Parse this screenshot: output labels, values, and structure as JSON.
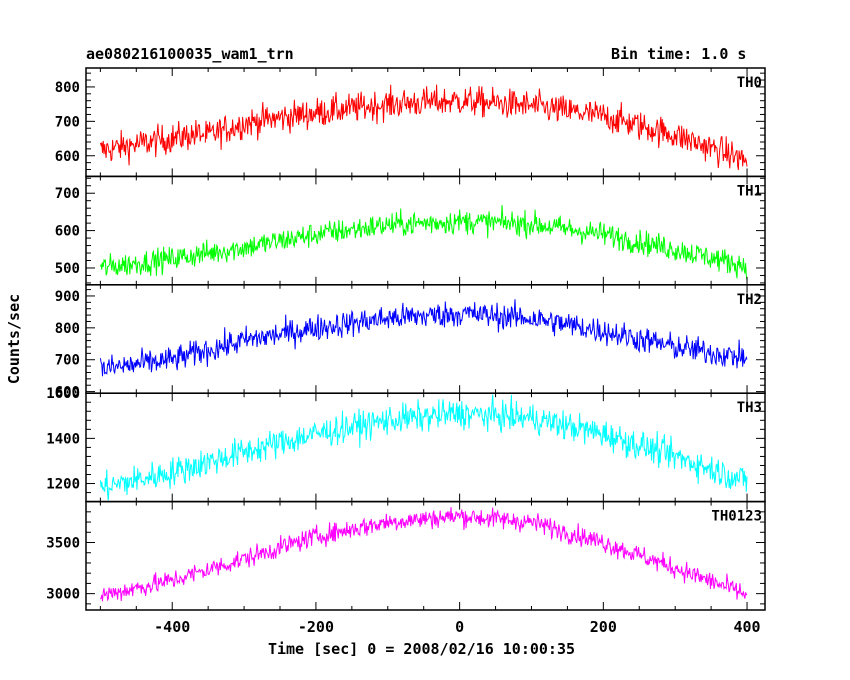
{
  "header": {
    "title": "ae080216100035_wam1_trn",
    "bin_time": "Bin time: 1.0 s"
  },
  "chart_data": {
    "type": "line",
    "title": "ae080216100035_wam1_trn",
    "xlabel": "Time [sec] 0 = 2008/02/16 10:00:35",
    "ylabel": "Counts/sec",
    "xlim": [
      -520,
      425
    ],
    "x_ticks": [
      "-400",
      "-200",
      "0",
      "200",
      "400"
    ],
    "x_tick_values": [
      -400,
      -200,
      0,
      200,
      400
    ],
    "grid": false,
    "panels": [
      {
        "name": "TH0",
        "color": "#ff0000",
        "ylim": [
          540,
          855
        ],
        "y_ticks": [
          "600",
          "700",
          "800"
        ],
        "y_tick_values": [
          600,
          700,
          800
        ],
        "noise": 40,
        "gap_at": -355,
        "trend": [
          [
            -500,
            615
          ],
          [
            -360,
            665
          ],
          [
            -355,
            655
          ],
          [
            -300,
            695
          ],
          [
            -200,
            725
          ],
          [
            -100,
            750
          ],
          [
            0,
            760
          ],
          [
            100,
            745
          ],
          [
            200,
            715
          ],
          [
            300,
            660
          ],
          [
            400,
            585
          ]
        ]
      },
      {
        "name": "TH1",
        "color": "#00ff00",
        "ylim": [
          455,
          745
        ],
        "y_ticks": [
          "500",
          "600",
          "700"
        ],
        "y_tick_values": [
          500,
          600,
          700
        ],
        "noise": 30,
        "trend": [
          [
            -500,
            500
          ],
          [
            -400,
            525
          ],
          [
            -300,
            555
          ],
          [
            -200,
            590
          ],
          [
            -100,
            615
          ],
          [
            0,
            625
          ],
          [
            100,
            618
          ],
          [
            200,
            590
          ],
          [
            300,
            550
          ],
          [
            400,
            505
          ]
        ]
      },
      {
        "name": "TH2",
        "color": "#0000ff",
        "ylim": [
          595,
          935
        ],
        "y_ticks": [
          "600",
          "700",
          "800",
          "900"
        ],
        "y_tick_values": [
          600,
          700,
          800,
          900
        ],
        "noise": 38,
        "trend": [
          [
            -500,
            670
          ],
          [
            -400,
            700
          ],
          [
            -300,
            760
          ],
          [
            -200,
            800
          ],
          [
            -100,
            830
          ],
          [
            0,
            845
          ],
          [
            100,
            830
          ],
          [
            200,
            790
          ],
          [
            300,
            740
          ],
          [
            400,
            705
          ]
        ]
      },
      {
        "name": "TH3",
        "color": "#00ffff",
        "ylim": [
          1120,
          1600
        ],
        "y_ticks": [
          "1200",
          "1400",
          "1600"
        ],
        "y_tick_values": [
          1200,
          1400,
          1600
        ],
        "noise": 60,
        "trend": [
          [
            -500,
            1180
          ],
          [
            -400,
            1250
          ],
          [
            -300,
            1340
          ],
          [
            -200,
            1420
          ],
          [
            -100,
            1480
          ],
          [
            0,
            1510
          ],
          [
            100,
            1490
          ],
          [
            200,
            1420
          ],
          [
            300,
            1320
          ],
          [
            400,
            1210
          ]
        ]
      },
      {
        "name": "TH0123",
        "color": "#ff00ff",
        "ylim": [
          2840,
          3900
        ],
        "y_ticks": [
          "3000",
          "3500"
        ],
        "y_tick_values": [
          3000,
          3500
        ],
        "noise": 90,
        "trend": [
          [
            -500,
            2980
          ],
          [
            -400,
            3130
          ],
          [
            -300,
            3340
          ],
          [
            -200,
            3560
          ],
          [
            -100,
            3700
          ],
          [
            0,
            3760
          ],
          [
            100,
            3700
          ],
          [
            200,
            3500
          ],
          [
            300,
            3250
          ],
          [
            400,
            2990
          ]
        ]
      }
    ]
  }
}
